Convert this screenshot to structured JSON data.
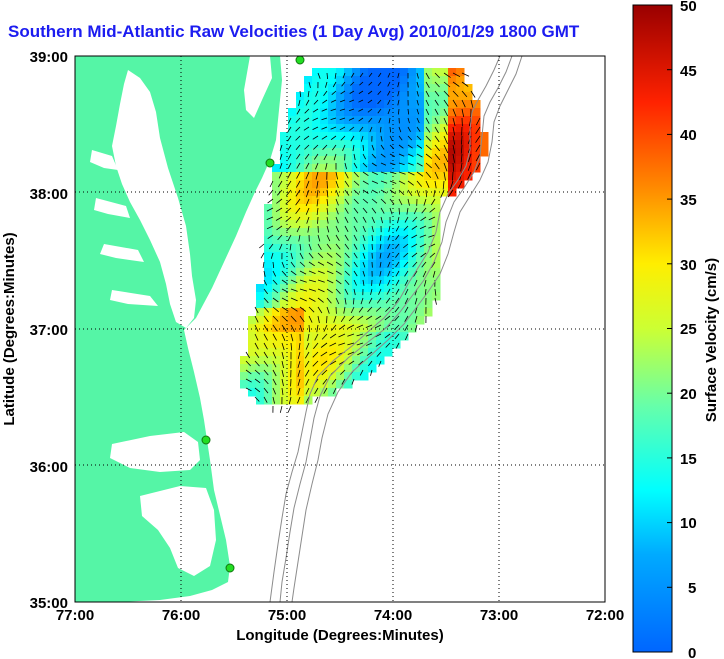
{
  "title": "Southern Mid-Atlantic Raw Velocities (1 Day Avg) 2010/01/29 1800 GMT",
  "map": {
    "x_axis_label": "Longitude (Degrees:Minutes)",
    "y_axis_label": "Latitude (Degrees:Minutes)",
    "x_ticks": [
      "77:00",
      "76:00",
      "75:00",
      "74:00",
      "73:00",
      "72:00"
    ],
    "y_ticks": [
      "39:00",
      "38:00",
      "37:00",
      "36:00",
      "35:00"
    ],
    "lon_range": [
      -77,
      -72
    ],
    "lat_range": [
      35,
      39
    ],
    "grid": "dotted",
    "land_color": "#55f5a6",
    "water_color": "#ffffff",
    "bathymetry_color": "#8c8c8c",
    "station_color": "#22dd22"
  },
  "colorbar": {
    "label": "Surface Velocity (cm/s)",
    "min": 0,
    "max": 50,
    "ticks": [
      "50",
      "45",
      "40",
      "35",
      "30",
      "25",
      "20",
      "15",
      "10",
      "5",
      "0"
    ],
    "colormap": "jet"
  }
}
